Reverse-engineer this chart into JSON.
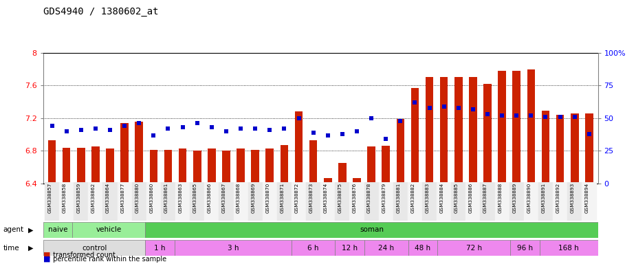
{
  "title": "GDS4940 / 1380602_at",
  "samples": [
    "GSM338857",
    "GSM338858",
    "GSM338859",
    "GSM338862",
    "GSM338864",
    "GSM338877",
    "GSM338880",
    "GSM338860",
    "GSM338861",
    "GSM338863",
    "GSM338865",
    "GSM338866",
    "GSM338867",
    "GSM338868",
    "GSM338869",
    "GSM338870",
    "GSM338871",
    "GSM338872",
    "GSM338873",
    "GSM338874",
    "GSM338875",
    "GSM338876",
    "GSM338878",
    "GSM338879",
    "GSM338881",
    "GSM338882",
    "GSM338883",
    "GSM338884",
    "GSM338885",
    "GSM338886",
    "GSM338887",
    "GSM338888",
    "GSM338889",
    "GSM338890",
    "GSM338891",
    "GSM338892",
    "GSM338893",
    "GSM338894"
  ],
  "transformed_count": [
    6.93,
    6.84,
    6.84,
    6.85,
    6.83,
    7.14,
    7.16,
    6.81,
    6.81,
    6.83,
    6.8,
    6.83,
    6.8,
    6.83,
    6.81,
    6.83,
    6.87,
    7.28,
    6.93,
    6.47,
    6.65,
    6.47,
    6.85,
    6.86,
    7.19,
    7.57,
    7.7,
    7.7,
    7.7,
    7.7,
    7.62,
    7.78,
    7.78,
    7.8,
    7.29,
    7.24,
    7.26,
    7.26
  ],
  "percentile_rank": [
    44,
    40,
    41,
    42,
    41,
    44,
    46,
    37,
    42,
    43,
    46,
    43,
    40,
    42,
    42,
    41,
    42,
    50,
    39,
    37,
    38,
    40,
    50,
    34,
    48,
    62,
    58,
    59,
    58,
    57,
    53,
    52,
    52,
    52,
    51,
    51,
    51,
    38
  ],
  "ylim_left": [
    6.4,
    8.0
  ],
  "yticks_left": [
    6.4,
    6.8,
    7.2,
    7.6,
    8.0
  ],
  "ytick_labels_left": [
    "6.4",
    "6.8",
    "7.2",
    "7.6",
    "8"
  ],
  "ylim_right": [
    0,
    100
  ],
  "yticks_right": [
    0,
    25,
    50,
    75,
    100
  ],
  "ytick_labels_right": [
    "0",
    "25",
    "50",
    "75",
    "100%"
  ],
  "bar_color": "#CC2200",
  "dot_color": "#0000CC",
  "background_color": "#FFFFFF",
  "agent_groups": [
    {
      "label": "naive",
      "start": 0,
      "end": 2,
      "color": "#99EE99"
    },
    {
      "label": "vehicle",
      "start": 2,
      "end": 7,
      "color": "#99EE99"
    },
    {
      "label": "soman",
      "start": 7,
      "end": 38,
      "color": "#55CC55"
    }
  ],
  "time_groups": [
    {
      "label": "control",
      "start": 0,
      "end": 7,
      "color": "#DDDDDD"
    },
    {
      "label": "1 h",
      "start": 7,
      "end": 9,
      "color": "#EE88EE"
    },
    {
      "label": "3 h",
      "start": 9,
      "end": 17,
      "color": "#EE88EE"
    },
    {
      "label": "6 h",
      "start": 17,
      "end": 20,
      "color": "#EE88EE"
    },
    {
      "label": "12 h",
      "start": 20,
      "end": 22,
      "color": "#EE88EE"
    },
    {
      "label": "24 h",
      "start": 22,
      "end": 25,
      "color": "#EE88EE"
    },
    {
      "label": "48 h",
      "start": 25,
      "end": 27,
      "color": "#EE88EE"
    },
    {
      "label": "72 h",
      "start": 27,
      "end": 32,
      "color": "#EE88EE"
    },
    {
      "label": "96 h",
      "start": 32,
      "end": 34,
      "color": "#EE88EE"
    },
    {
      "label": "168 h",
      "start": 34,
      "end": 38,
      "color": "#EE88EE"
    }
  ]
}
